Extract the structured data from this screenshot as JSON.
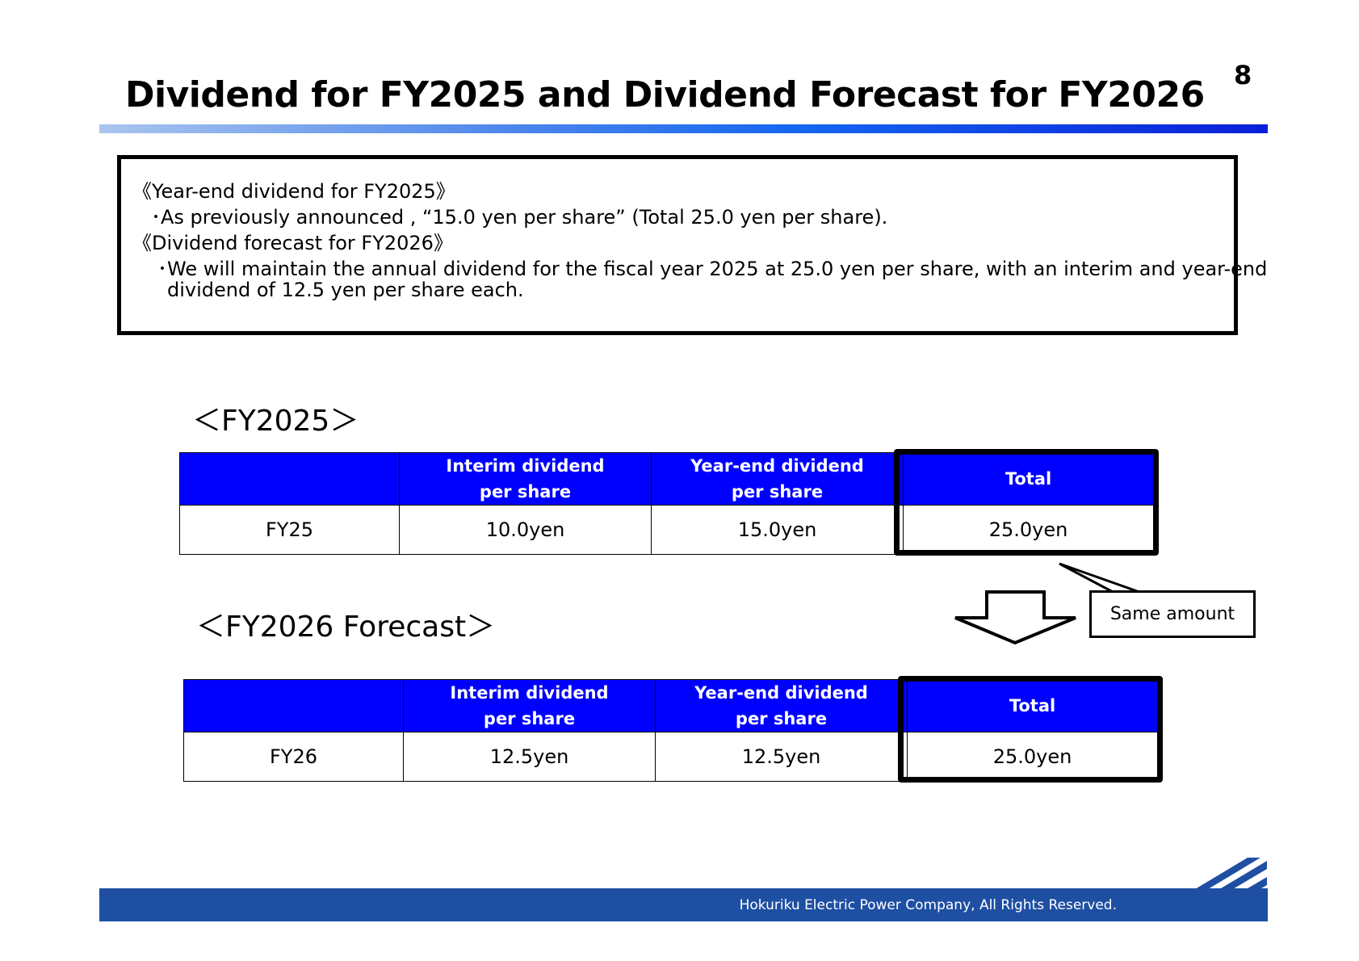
{
  "page_number": "8",
  "title": "Dividend for FY2025 and Dividend Forecast for FY2026",
  "summary": {
    "heading1": "《Year-end dividend for FY2025》",
    "bullet1": "･As previously announced , “15.0 yen per share” (Total 25.0 yen per share).",
    "heading2": "《Dividend forecast for FY2026》",
    "bullet2_line1": "･We will maintain the annual dividend for the fiscal year 2025 at 25.0 yen per share, with an interim and year-end",
    "bullet2_line2": "dividend of 12.5 yen per share each."
  },
  "fy2025": {
    "heading": "＜FY2025＞",
    "columns": {
      "interim_line1": "Interim dividend",
      "interim_line2": "per share",
      "yearend_line1": "Year-end dividend",
      "yearend_line2": "per share",
      "total": "Total"
    },
    "row": {
      "label": "FY25",
      "interim": "10.0yen",
      "yearend": "15.0yen",
      "total": "25.0yen"
    }
  },
  "fy2026": {
    "heading": "＜FY2026 Forecast＞",
    "columns": {
      "interim_line1": "Interim dividend",
      "interim_line2": "per share",
      "yearend_line1": "Year-end dividend",
      "yearend_line2": "per share",
      "total": "Total"
    },
    "row": {
      "label": "FY26",
      "interim": "12.5yen",
      "yearend": "12.5yen",
      "total": "25.0yen"
    }
  },
  "callout": "Same amount",
  "footer": {
    "copyright": " Hokuriku Electric Power Company, All  Rights  Reserved."
  },
  "colors": {
    "header_blue": "#0000ff",
    "footer_blue": "#1e4fa3"
  },
  "icons": {
    "arrow": "down-arrow-icon",
    "logo": "stripes-logo-icon"
  }
}
